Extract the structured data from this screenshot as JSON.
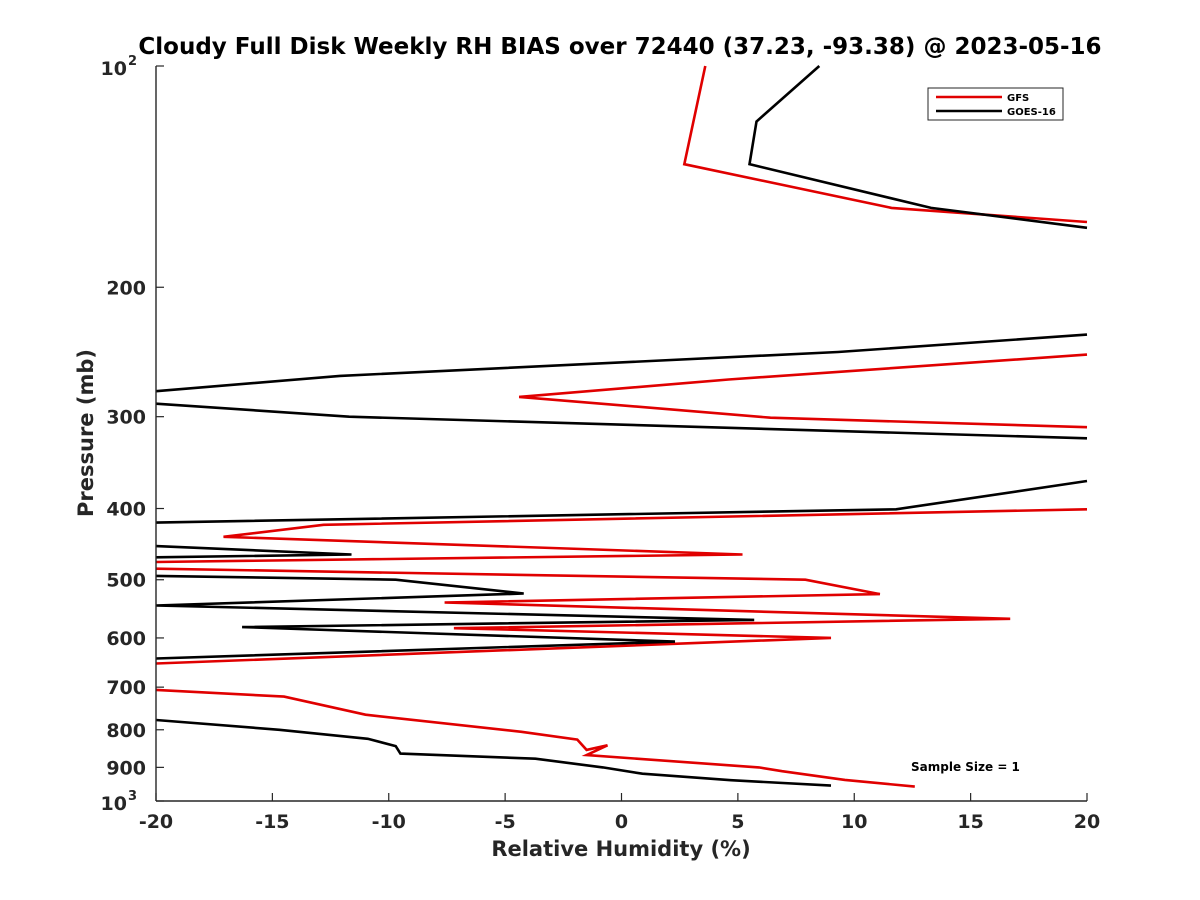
{
  "chart_data": {
    "type": "line",
    "title": "Cloudy Full Disk Weekly RH BIAS over 72440 (37.23, -93.38) @ 2023-05-16",
    "xlabel": "Relative Humidity (%)",
    "ylabel": "Pressure (mb)",
    "xlim": [
      -20,
      20
    ],
    "ylim": [
      100,
      1000
    ],
    "yscale": "log",
    "y_reversed": true,
    "grid": false,
    "legend_position": "top-right",
    "x_ticks": [
      -20,
      -15,
      -10,
      -5,
      0,
      5,
      10,
      15,
      20
    ],
    "x_tick_labels": [
      "-20",
      "-15",
      "-10",
      "-5",
      "0",
      "5",
      "10",
      "15",
      "20"
    ],
    "y_ticks": [
      {
        "value": 100,
        "label": "10",
        "sup": "2"
      },
      {
        "value": 200,
        "label": "200",
        "sup": ""
      },
      {
        "value": 300,
        "label": "300",
        "sup": ""
      },
      {
        "value": 400,
        "label": "400",
        "sup": ""
      },
      {
        "value": 500,
        "label": "500",
        "sup": ""
      },
      {
        "value": 600,
        "label": "600",
        "sup": ""
      },
      {
        "value": 700,
        "label": "700",
        "sup": ""
      },
      {
        "value": 800,
        "label": "800",
        "sup": ""
      },
      {
        "value": 900,
        "label": "900",
        "sup": ""
      },
      {
        "value": 1000,
        "label": "10",
        "sup": "3"
      }
    ],
    "annotation": "Sample Size = 1",
    "series": [
      {
        "name": "GFS",
        "color": "#e00000",
        "points": [
          [
            3.6,
            100
          ],
          [
            2.7,
            136
          ],
          [
            11.6,
            156
          ],
          [
            20,
            163
          ],
          [
            null,
            190
          ],
          [
            20,
            247
          ],
          [
            4.6,
            267
          ],
          [
            -4.4,
            282
          ],
          [
            6.4,
            301
          ],
          [
            20,
            310
          ],
          [
            null,
            350
          ],
          [
            20,
            401
          ],
          [
            -12.8,
            421
          ],
          [
            -17.1,
            437
          ],
          [
            5.2,
            462
          ],
          [
            -20,
            473
          ],
          [
            null,
            478
          ],
          [
            -20,
            483
          ],
          [
            7.9,
            500
          ],
          [
            11.1,
            523
          ],
          [
            -7.6,
            537
          ],
          [
            16.7,
            565
          ],
          [
            -7.2,
            582
          ],
          [
            9.0,
            600
          ],
          [
            -20,
            650
          ],
          [
            null,
            680
          ],
          [
            -20,
            706
          ],
          [
            -14.5,
            721
          ],
          [
            -11.0,
            763
          ],
          [
            -4.3,
            805
          ],
          [
            -1.9,
            825
          ],
          [
            -1.5,
            852
          ],
          [
            -0.6,
            840
          ],
          [
            -1.5,
            866
          ],
          [
            5.9,
            900
          ],
          [
            6.9,
            911
          ],
          [
            9.6,
            936
          ],
          [
            12.6,
            956
          ]
        ]
      },
      {
        "name": "GOES-16",
        "color": "#000000",
        "points": [
          [
            8.5,
            100
          ],
          [
            5.8,
            119
          ],
          [
            5.5,
            136
          ],
          [
            13.3,
            156
          ],
          [
            20,
            166
          ],
          [
            null,
            190
          ],
          [
            20,
            232
          ],
          [
            9.3,
            245
          ],
          [
            -12.1,
            264
          ],
          [
            -20,
            277
          ],
          [
            null,
            282
          ],
          [
            -20,
            288
          ],
          [
            -11.7,
            300
          ],
          [
            20,
            321
          ],
          [
            null,
            350
          ],
          [
            20,
            367
          ],
          [
            11.8,
            401
          ],
          [
            -20,
            418
          ],
          [
            null,
            430
          ],
          [
            -20,
            450
          ],
          [
            -11.6,
            462
          ],
          [
            -20,
            466
          ],
          [
            null,
            480
          ],
          [
            -20,
            494
          ],
          [
            -9.7,
            500
          ],
          [
            -4.2,
            522
          ],
          [
            -20,
            542
          ],
          [
            5.7,
            567
          ],
          [
            -16.3,
            580
          ],
          [
            2.3,
            607
          ],
          [
            -20,
            640
          ],
          [
            null,
            700
          ],
          [
            -20,
            776
          ],
          [
            -14.7,
            800
          ],
          [
            -10.9,
            823
          ],
          [
            -9.7,
            842
          ],
          [
            -9.5,
            862
          ],
          [
            -3.7,
            876
          ],
          [
            -0.8,
            900
          ],
          [
            0.9,
            918
          ],
          [
            4.7,
            937
          ],
          [
            9.0,
            953
          ]
        ]
      }
    ]
  }
}
